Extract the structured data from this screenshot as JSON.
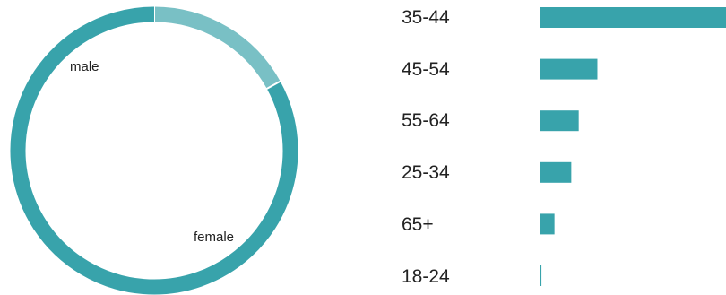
{
  "chart_data": [
    {
      "type": "pie",
      "categories": [
        "male",
        "female"
      ],
      "values": [
        17,
        83
      ],
      "colors": [
        "#79c0c5",
        "#38a3ab"
      ],
      "title": "",
      "legend": "none"
    },
    {
      "type": "bar",
      "orientation": "horizontal",
      "categories": [
        "35-44",
        "45-54",
        "55-64",
        "25-34",
        "65+",
        "18-24"
      ],
      "values": [
        100,
        31,
        21,
        17,
        8,
        1
      ],
      "color": "#38a3ab",
      "title": "",
      "xlabel": "",
      "ylabel": "",
      "xlim": [
        0,
        100
      ],
      "grid": false
    }
  ]
}
